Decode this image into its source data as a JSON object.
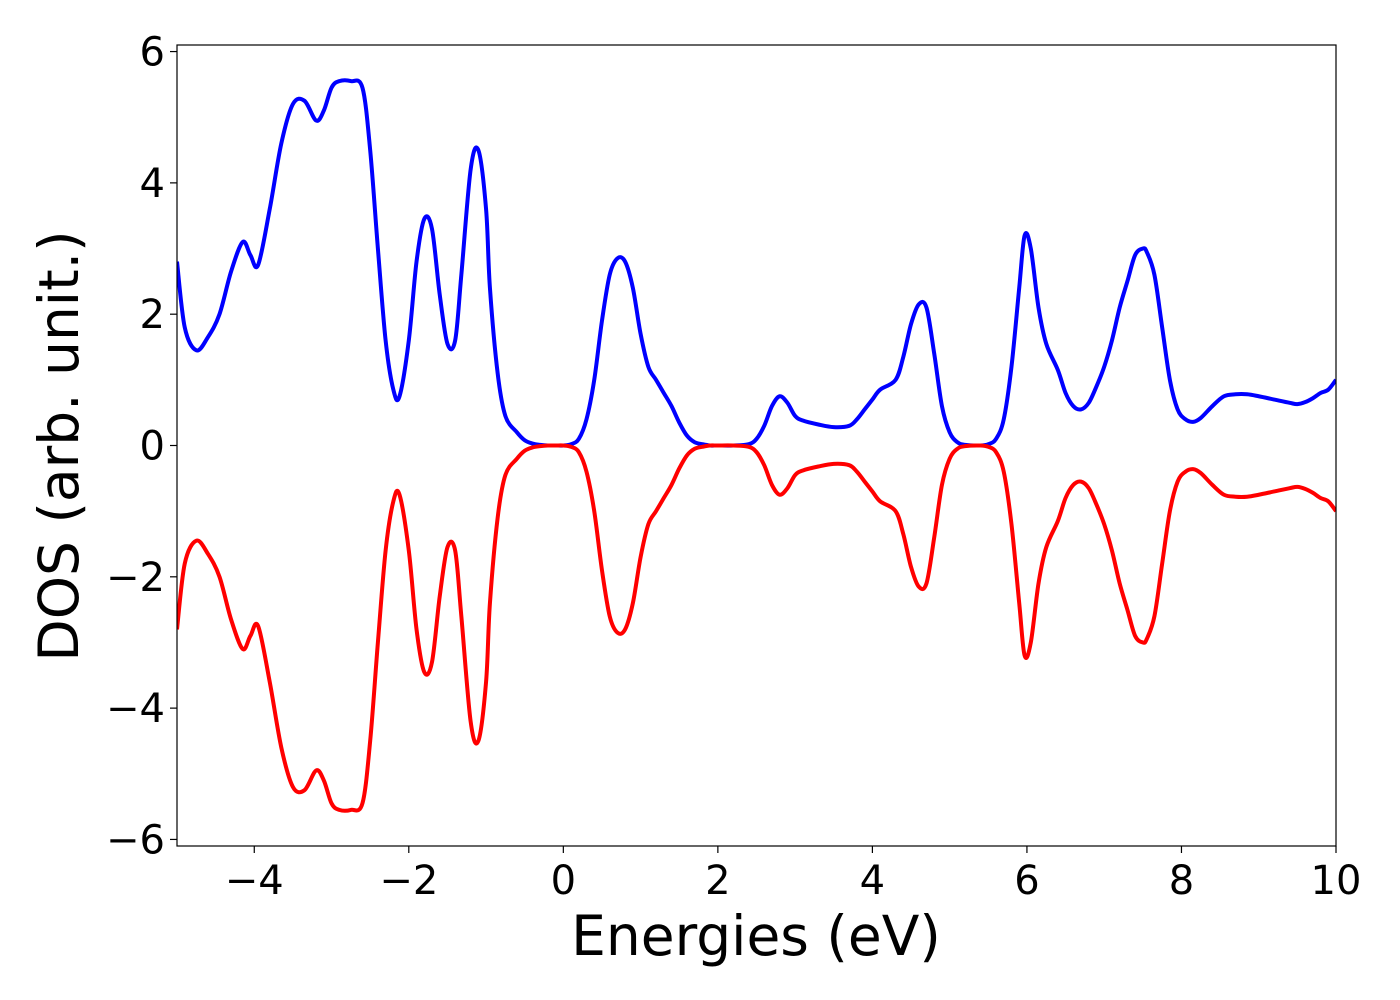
{
  "chart_data": {
    "type": "line",
    "xlabel": "Energies (eV)",
    "ylabel": "DOS (arb. unit.)",
    "xlim": [
      -5,
      10
    ],
    "ylim": [
      -6.1,
      6.1
    ],
    "grid": false,
    "legend": "none",
    "xticks": [
      -4,
      -2,
      0,
      2,
      4,
      6,
      8,
      10
    ],
    "xtick_labels": [
      "−4",
      "−2",
      "0",
      "2",
      "4",
      "6",
      "8",
      "10"
    ],
    "yticks": [
      -6,
      -4,
      -2,
      0,
      2,
      4,
      6
    ],
    "ytick_labels": [
      "−6",
      "−4",
      "−2",
      "0",
      "2",
      "4",
      "6"
    ],
    "series": [
      {
        "color": "#0000ff",
        "x": [
          -5.0,
          -4.9,
          -4.75,
          -4.6,
          -4.45,
          -4.3,
          -4.15,
          -4.05,
          -3.95,
          -3.8,
          -3.65,
          -3.5,
          -3.35,
          -3.2,
          -3.1,
          -3.0,
          -2.9,
          -2.75,
          -2.6,
          -2.5,
          -2.4,
          -2.3,
          -2.2,
          -2.12,
          -2.0,
          -1.9,
          -1.8,
          -1.7,
          -1.6,
          -1.5,
          -1.4,
          -1.32,
          -1.2,
          -1.1,
          -1.0,
          -0.95,
          -0.85,
          -0.75,
          -0.6,
          -0.5,
          -0.4,
          -0.3,
          -0.2,
          -0.1,
          0.0,
          0.1,
          0.2,
          0.3,
          0.4,
          0.5,
          0.6,
          0.7,
          0.8,
          0.9,
          1.0,
          1.1,
          1.2,
          1.3,
          1.4,
          1.5,
          1.6,
          1.7,
          1.8,
          1.9,
          2.0,
          2.2,
          2.4,
          2.5,
          2.6,
          2.7,
          2.8,
          2.9,
          3.0,
          3.1,
          3.3,
          3.5,
          3.7,
          3.8,
          3.9,
          4.0,
          4.1,
          4.3,
          4.4,
          4.5,
          4.6,
          4.7,
          4.8,
          4.9,
          5.0,
          5.1,
          5.2,
          5.4,
          5.5,
          5.6,
          5.7,
          5.8,
          5.9,
          5.97,
          6.05,
          6.15,
          6.25,
          6.4,
          6.5,
          6.6,
          6.7,
          6.8,
          6.9,
          7.0,
          7.1,
          7.2,
          7.3,
          7.4,
          7.5,
          7.55,
          7.65,
          7.75,
          7.85,
          7.95,
          8.05,
          8.15,
          8.25,
          8.4,
          8.55,
          8.7,
          8.85,
          9.0,
          9.2,
          9.4,
          9.5,
          9.6,
          9.7,
          9.8,
          9.9,
          10.0
        ],
        "y": [
          2.8,
          1.8,
          1.45,
          1.65,
          2.0,
          2.65,
          3.1,
          2.9,
          2.75,
          3.6,
          4.6,
          5.2,
          5.25,
          4.95,
          5.1,
          5.45,
          5.55,
          5.55,
          5.45,
          4.5,
          3.0,
          1.6,
          0.85,
          0.75,
          1.6,
          2.8,
          3.45,
          3.3,
          2.3,
          1.55,
          1.6,
          2.6,
          4.2,
          4.5,
          3.6,
          2.4,
          1.1,
          0.45,
          0.2,
          0.08,
          0.03,
          0.01,
          0.0,
          0.0,
          0.0,
          0.02,
          0.1,
          0.4,
          1.0,
          1.9,
          2.6,
          2.85,
          2.8,
          2.4,
          1.7,
          1.2,
          1.0,
          0.8,
          0.6,
          0.35,
          0.15,
          0.05,
          0.02,
          0.0,
          0.0,
          0.0,
          0.02,
          0.1,
          0.3,
          0.6,
          0.75,
          0.65,
          0.45,
          0.38,
          0.32,
          0.28,
          0.3,
          0.4,
          0.55,
          0.7,
          0.85,
          1.0,
          1.35,
          1.85,
          2.15,
          2.1,
          1.4,
          0.6,
          0.2,
          0.05,
          0.01,
          0.0,
          0.02,
          0.1,
          0.4,
          1.2,
          2.4,
          3.2,
          3.0,
          2.1,
          1.55,
          1.15,
          0.8,
          0.6,
          0.55,
          0.65,
          0.9,
          1.2,
          1.6,
          2.1,
          2.5,
          2.9,
          3.0,
          2.95,
          2.6,
          1.8,
          1.0,
          0.55,
          0.4,
          0.36,
          0.42,
          0.6,
          0.75,
          0.78,
          0.78,
          0.75,
          0.7,
          0.65,
          0.63,
          0.66,
          0.72,
          0.8,
          0.85,
          1.0
        ]
      },
      {
        "color": "#ff0000",
        "x": [
          -5.0,
          -4.9,
          -4.75,
          -4.6,
          -4.45,
          -4.3,
          -4.15,
          -4.05,
          -3.95,
          -3.8,
          -3.65,
          -3.5,
          -3.35,
          -3.2,
          -3.1,
          -3.0,
          -2.9,
          -2.75,
          -2.6,
          -2.5,
          -2.4,
          -2.3,
          -2.2,
          -2.12,
          -2.0,
          -1.9,
          -1.8,
          -1.7,
          -1.6,
          -1.5,
          -1.4,
          -1.32,
          -1.2,
          -1.1,
          -1.0,
          -0.95,
          -0.85,
          -0.75,
          -0.6,
          -0.5,
          -0.4,
          -0.3,
          -0.2,
          -0.1,
          0.0,
          0.1,
          0.2,
          0.3,
          0.4,
          0.5,
          0.6,
          0.7,
          0.8,
          0.9,
          1.0,
          1.1,
          1.2,
          1.3,
          1.4,
          1.5,
          1.6,
          1.7,
          1.8,
          1.9,
          2.0,
          2.2,
          2.4,
          2.5,
          2.6,
          2.7,
          2.8,
          2.9,
          3.0,
          3.1,
          3.3,
          3.5,
          3.7,
          3.8,
          3.9,
          4.0,
          4.1,
          4.3,
          4.4,
          4.5,
          4.6,
          4.7,
          4.8,
          4.9,
          5.0,
          5.1,
          5.2,
          5.4,
          5.5,
          5.6,
          5.7,
          5.8,
          5.9,
          5.97,
          6.05,
          6.15,
          6.25,
          6.4,
          6.5,
          6.6,
          6.7,
          6.8,
          6.9,
          7.0,
          7.1,
          7.2,
          7.3,
          7.4,
          7.5,
          7.55,
          7.65,
          7.75,
          7.85,
          7.95,
          8.05,
          8.15,
          8.25,
          8.4,
          8.55,
          8.7,
          8.85,
          9.0,
          9.2,
          9.4,
          9.5,
          9.6,
          9.7,
          9.8,
          9.9,
          10.0
        ],
        "y": [
          -2.8,
          -1.8,
          -1.45,
          -1.65,
          -2.0,
          -2.65,
          -3.1,
          -2.9,
          -2.75,
          -3.6,
          -4.6,
          -5.2,
          -5.25,
          -4.95,
          -5.1,
          -5.45,
          -5.55,
          -5.55,
          -5.45,
          -4.5,
          -3.0,
          -1.6,
          -0.85,
          -0.75,
          -1.6,
          -2.8,
          -3.45,
          -3.3,
          -2.3,
          -1.55,
          -1.6,
          -2.6,
          -4.2,
          -4.5,
          -3.6,
          -2.4,
          -1.1,
          -0.45,
          -0.2,
          -0.08,
          -0.03,
          -0.01,
          0.0,
          0.0,
          0.0,
          -0.02,
          -0.1,
          -0.4,
          -1.0,
          -1.9,
          -2.6,
          -2.85,
          -2.8,
          -2.4,
          -1.7,
          -1.2,
          -1.0,
          -0.8,
          -0.6,
          -0.35,
          -0.15,
          -0.05,
          -0.02,
          0.0,
          0.0,
          0.0,
          -0.02,
          -0.1,
          -0.3,
          -0.6,
          -0.75,
          -0.65,
          -0.45,
          -0.38,
          -0.32,
          -0.28,
          -0.3,
          -0.4,
          -0.55,
          -0.7,
          -0.85,
          -1.0,
          -1.35,
          -1.85,
          -2.15,
          -2.1,
          -1.4,
          -0.6,
          -0.2,
          -0.05,
          -0.01,
          0.0,
          -0.02,
          -0.1,
          -0.4,
          -1.2,
          -2.4,
          -3.2,
          -3.0,
          -2.1,
          -1.55,
          -1.15,
          -0.8,
          -0.6,
          -0.55,
          -0.65,
          -0.9,
          -1.2,
          -1.6,
          -2.1,
          -2.5,
          -2.9,
          -3.0,
          -2.95,
          -2.6,
          -1.8,
          -1.0,
          -0.55,
          -0.4,
          -0.36,
          -0.42,
          -0.6,
          -0.75,
          -0.78,
          -0.78,
          -0.75,
          -0.7,
          -0.65,
          -0.63,
          -0.66,
          -0.72,
          -0.8,
          -0.85,
          -1.0
        ]
      }
    ]
  }
}
